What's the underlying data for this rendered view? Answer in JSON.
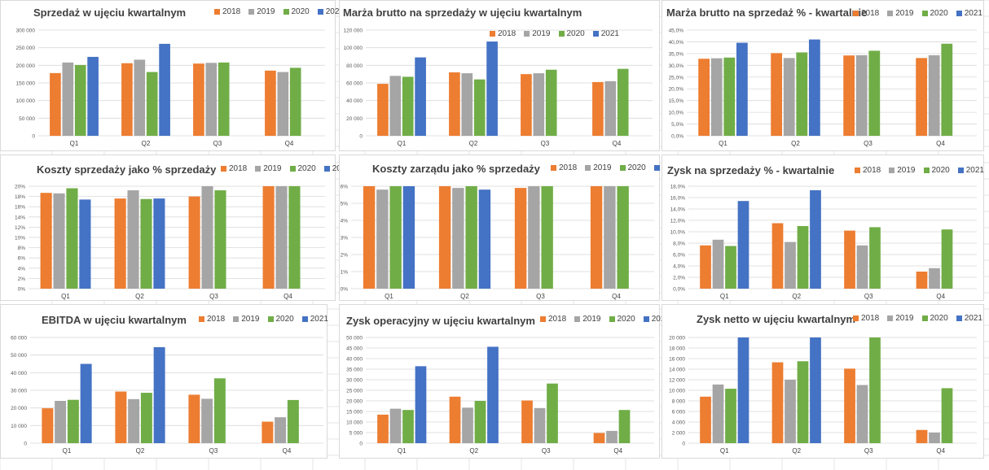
{
  "legend": [
    "2018",
    "2019",
    "2020",
    "2021"
  ],
  "colors": [
    "#ed7d31",
    "#a5a5a5",
    "#70ad47",
    "#4472c4"
  ],
  "chart_data": [
    {
      "type": "bar",
      "title": "Sprzedaż w ujęciu kwartalnym",
      "categories": [
        "Q1",
        "Q2",
        "Q3",
        "Q4"
      ],
      "ylim": [
        0,
        300000
      ],
      "yticks": [
        "0",
        "50 000",
        "100 000",
        "150 000",
        "200 000",
        "250 000",
        "300 000"
      ],
      "series": [
        {
          "name": "2018",
          "values": [
            178000,
            206000,
            205000,
            185000
          ]
        },
        {
          "name": "2019",
          "values": [
            208000,
            216000,
            207000,
            181000
          ]
        },
        {
          "name": "2020",
          "values": [
            201000,
            181000,
            208000,
            193000
          ]
        },
        {
          "name": "2021",
          "values": [
            224000,
            261000,
            null,
            null
          ]
        }
      ]
    },
    {
      "type": "bar",
      "title": "Marża brutto na sprzedaży w ujęciu kwartalnym",
      "categories": [
        "Q1",
        "Q2",
        "Q3",
        "Q4"
      ],
      "ylim": [
        0,
        120000
      ],
      "yticks": [
        "0",
        "20 000",
        "40 000",
        "60 000",
        "80 000",
        "100 000",
        "120 000"
      ],
      "series": [
        {
          "name": "2018",
          "values": [
            59000,
            72000,
            70000,
            61000
          ]
        },
        {
          "name": "2019",
          "values": [
            68000,
            71000,
            71000,
            62000
          ]
        },
        {
          "name": "2020",
          "values": [
            67000,
            64000,
            75000,
            76000
          ]
        },
        {
          "name": "2021",
          "values": [
            89000,
            107000,
            null,
            null
          ]
        }
      ]
    },
    {
      "type": "bar",
      "title": "Marża brutto na sprzedaż % - kwartalnie",
      "categories": [
        "Q1",
        "Q2",
        "Q3",
        "Q4"
      ],
      "ylim": [
        0,
        45
      ],
      "yticks": [
        "0,0%",
        "5,0%",
        "10,0%",
        "15,0%",
        "20,0%",
        "25,0%",
        "30,0%",
        "35,0%",
        "40,0%",
        "45,0%"
      ],
      "series": [
        {
          "name": "2018",
          "values": [
            32.8,
            35.2,
            34.2,
            33.1
          ]
        },
        {
          "name": "2019",
          "values": [
            33.0,
            33.1,
            34.3,
            34.3
          ]
        },
        {
          "name": "2020",
          "values": [
            33.3,
            35.5,
            36.2,
            39.2
          ]
        },
        {
          "name": "2021",
          "values": [
            39.6,
            41.0,
            null,
            null
          ]
        }
      ]
    },
    {
      "type": "bar",
      "title": "Koszty sprzedaży jako % sprzedaży",
      "categories": [
        "Q1",
        "Q2",
        "Q3",
        "Q4"
      ],
      "ylim": [
        0,
        20
      ],
      "yticks": [
        "0%",
        "2%",
        "4%",
        "6%",
        "8%",
        "10%",
        "12%",
        "14%",
        "16%",
        "18%",
        "20%"
      ],
      "series": [
        {
          "name": "2018",
          "values": [
            18.7,
            17.6,
            18.0,
            20.0
          ]
        },
        {
          "name": "2019",
          "values": [
            18.6,
            19.2,
            20.0,
            20.0
          ]
        },
        {
          "name": "2020",
          "values": [
            19.6,
            17.5,
            19.2,
            20.0
          ]
        },
        {
          "name": "2021",
          "values": [
            17.4,
            17.6,
            null,
            null
          ]
        }
      ]
    },
    {
      "type": "bar",
      "title": "Koszty zarządu jako % sprzedaży",
      "categories": [
        "Q1",
        "Q2",
        "Q3",
        "Q4"
      ],
      "ylim": [
        0,
        6
      ],
      "yticks": [
        "0%",
        "1%",
        "2%",
        "3%",
        "4%",
        "5%",
        "6%"
      ],
      "series": [
        {
          "name": "2018",
          "values": [
            6.0,
            6.0,
            5.9,
            6.0
          ]
        },
        {
          "name": "2019",
          "values": [
            5.8,
            5.9,
            6.0,
            6.0
          ]
        },
        {
          "name": "2020",
          "values": [
            6.0,
            6.0,
            6.0,
            6.0
          ]
        },
        {
          "name": "2021",
          "values": [
            6.0,
            5.8,
            null,
            null
          ]
        }
      ]
    },
    {
      "type": "bar",
      "title": "Zysk na sprzedaży % - kwartalnie",
      "categories": [
        "Q1",
        "Q2",
        "Q3",
        "Q4"
      ],
      "ylim": [
        0,
        18
      ],
      "yticks": [
        "0,0%",
        "2,0%",
        "4,0%",
        "6,0%",
        "8,0%",
        "10,0%",
        "12,0%",
        "14,0%",
        "16,0%",
        "18,0%"
      ],
      "series": [
        {
          "name": "2018",
          "values": [
            7.6,
            11.5,
            10.2,
            3.0
          ]
        },
        {
          "name": "2019",
          "values": [
            8.6,
            8.2,
            7.6,
            3.6
          ]
        },
        {
          "name": "2020",
          "values": [
            7.5,
            11.0,
            10.8,
            10.4
          ]
        },
        {
          "name": "2021",
          "values": [
            15.4,
            17.3,
            null,
            null
          ]
        }
      ]
    },
    {
      "type": "bar",
      "title": "EBITDA w ujęciu kwartalnym",
      "categories": [
        "Q1",
        "Q2",
        "Q3",
        "Q4"
      ],
      "ylim": [
        0,
        60000
      ],
      "yticks": [
        "0",
        "10 000",
        "20 000",
        "30 000",
        "40 000",
        "50 000",
        "60 000"
      ],
      "series": [
        {
          "name": "2018",
          "values": [
            19800,
            29300,
            27500,
            12200
          ]
        },
        {
          "name": "2019",
          "values": [
            24000,
            25000,
            25200,
            14700
          ]
        },
        {
          "name": "2020",
          "values": [
            24600,
            28600,
            36800,
            24500
          ]
        },
        {
          "name": "2021",
          "values": [
            45000,
            54500,
            null,
            null
          ]
        }
      ]
    },
    {
      "type": "bar",
      "title": "Zysk operacyjny w ujęciu kwartalnym",
      "categories": [
        "Q1",
        "Q2",
        "Q3",
        "Q4"
      ],
      "ylim": [
        0,
        50000
      ],
      "yticks": [
        "0",
        "5 000",
        "10 000",
        "15 000",
        "20 000",
        "25 000",
        "30 000",
        "35 000",
        "40 000",
        "45 000",
        "50 000"
      ],
      "series": [
        {
          "name": "2018",
          "values": [
            13500,
            22000,
            20200,
            4800
          ]
        },
        {
          "name": "2019",
          "values": [
            16300,
            16800,
            16600,
            5800
          ]
        },
        {
          "name": "2020",
          "values": [
            15700,
            20000,
            28200,
            15700
          ]
        },
        {
          "name": "2021",
          "values": [
            36400,
            45600,
            null,
            null
          ]
        }
      ]
    },
    {
      "type": "bar",
      "title": "Zysk netto w ujęciu kwartalnym",
      "categories": [
        "Q1",
        "Q2",
        "Q3",
        "Q4"
      ],
      "ylim": [
        0,
        20000
      ],
      "yticks": [
        "0",
        "2 000",
        "4 000",
        "6 000",
        "8 000",
        "10 000",
        "12 000",
        "14 000",
        "16 000",
        "18 000",
        "20 000"
      ],
      "series": [
        {
          "name": "2018",
          "values": [
            8800,
            15300,
            14100,
            2500
          ]
        },
        {
          "name": "2019",
          "values": [
            11100,
            12000,
            11000,
            2000
          ]
        },
        {
          "name": "2020",
          "values": [
            10300,
            15500,
            20000,
            10400
          ]
        },
        {
          "name": "2021",
          "values": [
            20000,
            20000,
            null,
            null
          ]
        }
      ]
    }
  ]
}
